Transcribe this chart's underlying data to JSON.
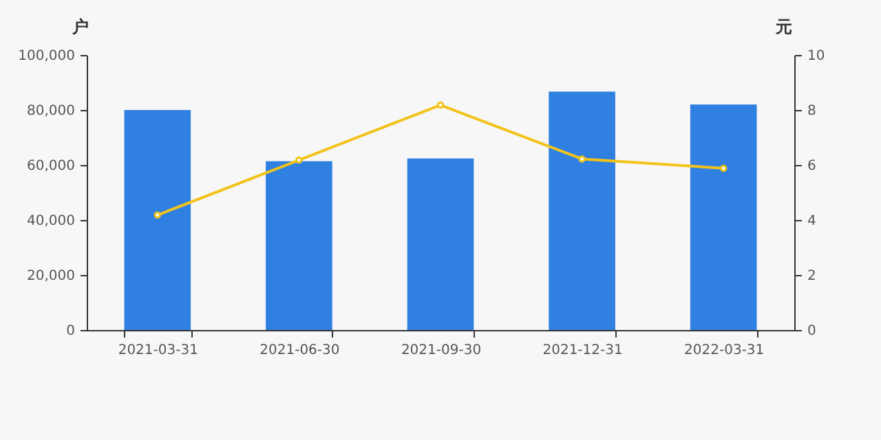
{
  "chart_data": {
    "type": "bar",
    "ylabel": "户",
    "y2label": "元",
    "categories": [
      "2021-03-31",
      "2021-06-30",
      "2021-09-30",
      "2021-12-31",
      "2022-03-31"
    ],
    "series": [
      {
        "color": "#2f80e0",
        "values": [
          80000,
          61400,
          62400,
          86700,
          82000
        ]
      },
      {
        "type": "line",
        "axis": "y2",
        "color": "#f2c31b",
        "values": [
          4.18,
          6.18,
          8.18,
          6.22,
          5.88
        ]
      }
    ],
    "marker": "circle",
    "ylim": [
      0,
      100000
    ],
    "yticks": [
      0,
      {
        "value": 20000,
        "label": "20,000"
      },
      {
        "value": 40000,
        "label": "40,000"
      },
      {
        "value": 60000,
        "label": "60,000"
      },
      {
        "value": 80000,
        "label": "80,000"
      },
      {
        "value": 100000,
        "label": "100,000"
      }
    ],
    "y2lim": [
      0,
      10
    ],
    "y2ticks": [
      0,
      2,
      4,
      6,
      8,
      10
    ]
  }
}
